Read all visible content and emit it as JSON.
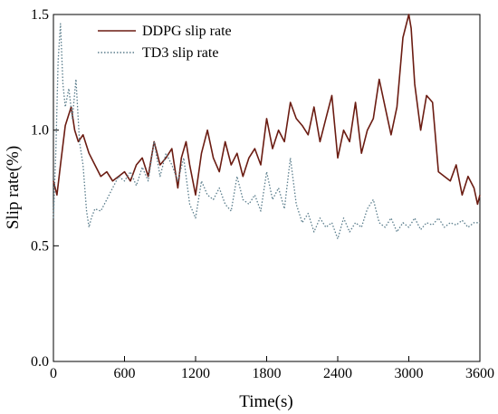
{
  "chart_data": {
    "type": "line",
    "title": "",
    "xlabel": "Time(s)",
    "ylabel": "Slip rate(%)",
    "xlim": [
      0,
      3600
    ],
    "ylim": [
      0.0,
      1.5
    ],
    "xticks": [
      0,
      600,
      1200,
      1800,
      2400,
      3000,
      3600
    ],
    "yticks": [
      0.0,
      0.5,
      1.0,
      1.5
    ],
    "xtick_labels": [
      "0",
      "600",
      "1200",
      "1800",
      "2400",
      "3000",
      "3600"
    ],
    "ytick_labels": [
      "0.0",
      "0.5",
      "1.0",
      "1.5"
    ],
    "grid": false,
    "legend_position": "top-left",
    "series": [
      {
        "name": "DDPG slip rate",
        "color": "#6b1c12",
        "style": "solid",
        "x": [
          0,
          30,
          60,
          100,
          150,
          180,
          210,
          250,
          300,
          350,
          400,
          450,
          500,
          550,
          600,
          650,
          700,
          750,
          800,
          850,
          900,
          950,
          1000,
          1050,
          1080,
          1120,
          1150,
          1200,
          1250,
          1300,
          1350,
          1400,
          1450,
          1500,
          1550,
          1600,
          1650,
          1700,
          1750,
          1800,
          1850,
          1900,
          1950,
          2000,
          2050,
          2100,
          2150,
          2200,
          2250,
          2300,
          2350,
          2400,
          2450,
          2500,
          2550,
          2600,
          2650,
          2700,
          2750,
          2800,
          2850,
          2900,
          2950,
          3000,
          3020,
          3050,
          3100,
          3150,
          3200,
          3250,
          3300,
          3350,
          3400,
          3450,
          3500,
          3550,
          3580,
          3600
        ],
        "values": [
          0.78,
          0.72,
          0.85,
          1.02,
          1.1,
          1.0,
          0.95,
          0.98,
          0.9,
          0.85,
          0.8,
          0.82,
          0.78,
          0.8,
          0.82,
          0.78,
          0.85,
          0.88,
          0.8,
          0.95,
          0.85,
          0.88,
          0.92,
          0.75,
          0.88,
          0.95,
          0.85,
          0.72,
          0.9,
          1.0,
          0.88,
          0.82,
          0.95,
          0.85,
          0.9,
          0.8,
          0.88,
          0.92,
          0.85,
          1.05,
          0.92,
          1.0,
          0.95,
          1.12,
          1.05,
          1.02,
          0.98,
          1.1,
          0.95,
          1.05,
          1.15,
          0.88,
          1.0,
          0.95,
          1.12,
          0.9,
          1.0,
          1.05,
          1.22,
          1.1,
          0.98,
          1.1,
          1.4,
          1.5,
          1.44,
          1.2,
          1.0,
          1.15,
          1.12,
          0.82,
          0.8,
          0.78,
          0.85,
          0.72,
          0.8,
          0.75,
          0.68,
          0.72
        ]
      },
      {
        "name": "TD3 slip rate",
        "color": "#5a7d8c",
        "style": "dotted",
        "x": [
          0,
          20,
          40,
          60,
          80,
          100,
          130,
          160,
          190,
          220,
          250,
          280,
          300,
          320,
          350,
          400,
          450,
          500,
          550,
          600,
          650,
          700,
          750,
          800,
          850,
          900,
          950,
          1000,
          1050,
          1100,
          1150,
          1200,
          1250,
          1300,
          1350,
          1400,
          1450,
          1500,
          1550,
          1600,
          1650,
          1700,
          1750,
          1800,
          1850,
          1900,
          1950,
          2000,
          2050,
          2100,
          2150,
          2200,
          2250,
          2300,
          2350,
          2400,
          2450,
          2500,
          2550,
          2600,
          2650,
          2700,
          2750,
          2800,
          2850,
          2900,
          2950,
          3000,
          3050,
          3100,
          3150,
          3200,
          3250,
          3300,
          3350,
          3400,
          3450,
          3500,
          3550,
          3600
        ],
        "values": [
          0.62,
          0.9,
          1.3,
          1.46,
          1.2,
          1.1,
          1.18,
          1.05,
          1.22,
          0.95,
          0.85,
          0.65,
          0.58,
          0.62,
          0.66,
          0.65,
          0.7,
          0.75,
          0.8,
          0.78,
          0.82,
          0.76,
          0.84,
          0.78,
          0.95,
          0.8,
          0.9,
          0.85,
          0.78,
          0.88,
          0.68,
          0.62,
          0.78,
          0.72,
          0.7,
          0.75,
          0.68,
          0.65,
          0.8,
          0.7,
          0.68,
          0.72,
          0.65,
          0.82,
          0.7,
          0.75,
          0.66,
          0.88,
          0.68,
          0.6,
          0.64,
          0.56,
          0.62,
          0.58,
          0.6,
          0.53,
          0.62,
          0.56,
          0.6,
          0.58,
          0.66,
          0.7,
          0.6,
          0.58,
          0.62,
          0.56,
          0.6,
          0.58,
          0.62,
          0.57,
          0.6,
          0.59,
          0.62,
          0.58,
          0.6,
          0.59,
          0.61,
          0.58,
          0.6,
          0.6
        ]
      }
    ]
  }
}
